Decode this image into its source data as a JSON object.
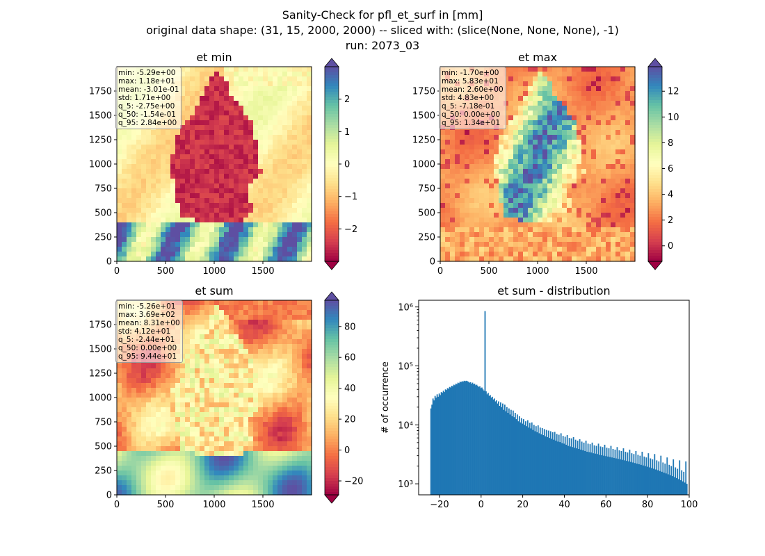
{
  "suptitle": {
    "line1": "Sanity-Check for pfl_et_surf in [mm]",
    "line2": "original data shape: (31, 15, 2000, 2000) -- sliced with: (slice(None, None, None), -1)",
    "line3": "run: 2073_03"
  },
  "chart_data": [
    {
      "type": "heatmap",
      "title": "et min",
      "xticks": [
        "0",
        "500",
        "1000",
        "1500"
      ],
      "yticks": [
        "0",
        "250",
        "500",
        "750",
        "1000",
        "1250",
        "1500",
        "1750"
      ],
      "xlim": [
        0,
        2000
      ],
      "ylim": [
        0,
        2000
      ],
      "colormap": "Spectral",
      "colorbar": {
        "range": [
          -3.0,
          3.0
        ],
        "ticks": [
          -2,
          -1,
          0,
          1,
          2
        ],
        "tick_labels": [
          "−2",
          "−1",
          "0",
          "1",
          "2"
        ],
        "extend": "both"
      },
      "stats": [
        "min: -5.29e+00",
        "max: 1.18e+01",
        "mean: -3.01e-01",
        "std: 1.71e+00",
        "q_5: -2.75e+00",
        "q_50: -1.54e-01",
        "q_95: 2.84e+00"
      ]
    },
    {
      "type": "heatmap",
      "title": "et max",
      "xticks": [
        "0",
        "500",
        "1000",
        "1500"
      ],
      "yticks": [
        "0",
        "250",
        "500",
        "750",
        "1000",
        "1250",
        "1500",
        "1750"
      ],
      "xlim": [
        0,
        2000
      ],
      "ylim": [
        0,
        2000
      ],
      "colormap": "Spectral",
      "colorbar": {
        "range": [
          -1.2,
          13.9
        ],
        "ticks": [
          0,
          2,
          4,
          6,
          8,
          10,
          12
        ],
        "tick_labels": [
          "0",
          "2",
          "4",
          "6",
          "8",
          "10",
          "12"
        ],
        "extend": "both"
      },
      "stats": [
        "min: -1.70e+00",
        "max: 5.83e+01",
        "mean: 2.60e+00",
        "std: 4.83e+00",
        "q_5: -7.18e-01",
        "q_50: 0.00e+00",
        "q_95: 1.34e+01"
      ]
    },
    {
      "type": "heatmap",
      "title": "et sum",
      "xticks": [
        "0",
        "500",
        "1000",
        "1500"
      ],
      "yticks": [
        "0",
        "250",
        "500",
        "750",
        "1000",
        "1250",
        "1500",
        "1750"
      ],
      "xlim": [
        0,
        2000
      ],
      "ylim": [
        0,
        2000
      ],
      "colormap": "Spectral",
      "colorbar": {
        "range": [
          -29,
          97
        ],
        "ticks": [
          -20,
          0,
          20,
          40,
          60,
          80
        ],
        "tick_labels": [
          "−20",
          "0",
          "20",
          "40",
          "60",
          "80"
        ],
        "extend": "both"
      },
      "stats": [
        "min: -5.26e+01",
        "max: 3.69e+02",
        "mean: 8.31e+00",
        "std: 4.12e+01",
        "q_5: -2.44e+01",
        "q_50: 0.00e+00",
        "q_95: 9.44e+01"
      ]
    },
    {
      "type": "bar",
      "title": "et sum - distribution",
      "ylabel": "# of occurrence",
      "xlabel": "",
      "xlim": [
        -30,
        100
      ],
      "xticks": [
        -20,
        0,
        20,
        40,
        60,
        80,
        100
      ],
      "xtick_labels": [
        "−20",
        "0",
        "20",
        "40",
        "60",
        "80",
        "100"
      ],
      "yscale": "log",
      "ylim": [
        650,
        1300000
      ],
      "ytick_labels": [
        "10³",
        "10⁴",
        "10⁵",
        "10⁶"
      ],
      "color": "#1f77b4",
      "bins": {
        "start": -24.4,
        "end": 94.4,
        "width": 0.5
      },
      "values": [
        19000,
        22000,
        28000,
        26000,
        31000,
        29000,
        33000,
        30000,
        34000,
        32000,
        36000,
        35000,
        38000,
        36000,
        40000,
        39000,
        42000,
        41000,
        44000,
        43000,
        46000,
        45000,
        48000,
        47000,
        50000,
        49000,
        52000,
        51000,
        54000,
        53000,
        55000,
        54000,
        56000,
        55000,
        56000,
        55000,
        54000,
        52000,
        53000,
        50000,
        52000,
        49000,
        50000,
        47000,
        48000,
        46000,
        44000,
        45000,
        42000,
        43000,
        40000,
        38000,
        850000,
        37000,
        33000,
        35000,
        31000,
        32000,
        29000,
        30000,
        27000,
        28000,
        25000,
        26000,
        23000,
        25000,
        21000,
        24000,
        20000,
        23000,
        18000,
        22000,
        17000,
        20000,
        16000,
        19000,
        15000,
        18000,
        14000,
        17500,
        13500,
        16000,
        12500,
        15000,
        11500,
        14000,
        11000,
        13000,
        10500,
        12500,
        10000,
        11500,
        9500,
        12000,
        9000,
        10800,
        8700,
        11000,
        8200,
        10000,
        7800,
        9500,
        7500,
        9800,
        7200,
        9000,
        6900,
        8800,
        6700,
        8500,
        6400,
        8200,
        6200,
        8000,
        6000,
        7800,
        5800,
        7500,
        5600,
        7600,
        5400,
        7000,
        5200,
        6800,
        5100,
        7200,
        4900,
        6500,
        4800,
        6300,
        4600,
        6700,
        4400,
        6000,
        4300,
        5900,
        4200,
        6200,
        4100,
        5600,
        4000,
        5400,
        3900,
        5700,
        3800,
        5200,
        3700,
        5000,
        3600,
        5400,
        3500,
        4800,
        3450,
        4700,
        3400,
        5000,
        3300,
        4500,
        3250,
        4400,
        3200,
        4800,
        3100,
        4300,
        3050,
        4200,
        3000,
        4600,
        2950,
        4100,
        2900,
        4000,
        2850,
        4400,
        2800,
        3900,
        2750,
        3800,
        2700,
        4200,
        2650,
        3700,
        2600,
        3600,
        2550,
        4000,
        2500,
        3500,
        2450,
        3400,
        2400,
        3800,
        2350,
        3300,
        2300,
        3200,
        2250,
        3600,
        2200,
        3100,
        2150,
        3000,
        2100,
        3500,
        2050,
        2900,
        2000,
        2800,
        1950,
        3300,
        1900,
        2700,
        1850,
        2600,
        1800,
        3200,
        1750,
        2500,
        1700,
        2400,
        1650,
        3000,
        1600,
        2300,
        1550,
        2200,
        1500,
        2800,
        1450,
        2100,
        1400,
        2000,
        1350,
        2600,
        1300,
        1900,
        1250,
        1800,
        1200,
        2500,
        1150,
        1700,
        1100,
        1600,
        1050,
        2400,
        1000
      ]
    }
  ]
}
